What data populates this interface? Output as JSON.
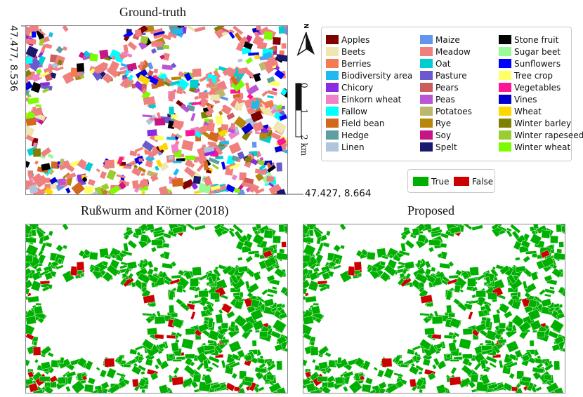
{
  "titles": {
    "ground_truth": "Ground-truth",
    "baseline": "Rußwurm and Körner (2018)",
    "proposed": "Proposed"
  },
  "coordinates": {
    "top_left": "47.477, 8.536",
    "bottom_right": "47.427, 8.664"
  },
  "north_arrow": {
    "label": "N",
    "icon": "north-arrow-icon"
  },
  "scale_bar": {
    "labels": [
      "0",
      "1",
      "2 km"
    ]
  },
  "legend": {
    "items": [
      {
        "label": "Apples",
        "color": "#800000"
      },
      {
        "label": "Beets",
        "color": "#efe6b0"
      },
      {
        "label": "Berries",
        "color": "#f47a52"
      },
      {
        "label": "Biodiversity area",
        "color": "#1eb9f0"
      },
      {
        "label": "Chicory",
        "color": "#8a2be2"
      },
      {
        "label": "Einkorn wheat",
        "color": "#ee82c8"
      },
      {
        "label": "Fallow",
        "color": "#00ffff"
      },
      {
        "label": "Field bean",
        "color": "#d2691e"
      },
      {
        "label": "Hedge",
        "color": "#5f9ea0"
      },
      {
        "label": "Linen",
        "color": "#b0c4de"
      },
      {
        "label": "Maize",
        "color": "#6495ed"
      },
      {
        "label": "Meadow",
        "color": "#f08080"
      },
      {
        "label": "Oat",
        "color": "#00ced1"
      },
      {
        "label": "Pasture",
        "color": "#6a5acd"
      },
      {
        "label": "Pears",
        "color": "#cd5c5c"
      },
      {
        "label": "Peas",
        "color": "#ba55d3"
      },
      {
        "label": "Potatoes",
        "color": "#bdb76b"
      },
      {
        "label": "Rye",
        "color": "#b8860b"
      },
      {
        "label": "Soy",
        "color": "#c71585"
      },
      {
        "label": "Spelt",
        "color": "#191970"
      },
      {
        "label": "Stone fruit",
        "color": "#000000"
      },
      {
        "label": "Sugar beet",
        "color": "#98fb98"
      },
      {
        "label": "Sunflowers",
        "color": "#0000ff"
      },
      {
        "label": "Tree crop",
        "color": "#ffff66"
      },
      {
        "label": "Vegetables",
        "color": "#ff1493"
      },
      {
        "label": "Vines",
        "color": "#0000cd"
      },
      {
        "label": "Wheat",
        "color": "#ffd700"
      },
      {
        "label": "Winter barley",
        "color": "#808000"
      },
      {
        "label": "Winter rapeseed",
        "color": "#9acd32"
      },
      {
        "label": "Winter wheat",
        "color": "#7cfc00"
      }
    ]
  },
  "accuracy_legend": {
    "items": [
      {
        "label": "True",
        "color": "#00b000"
      },
      {
        "label": "False",
        "color": "#cc0000"
      }
    ]
  }
}
